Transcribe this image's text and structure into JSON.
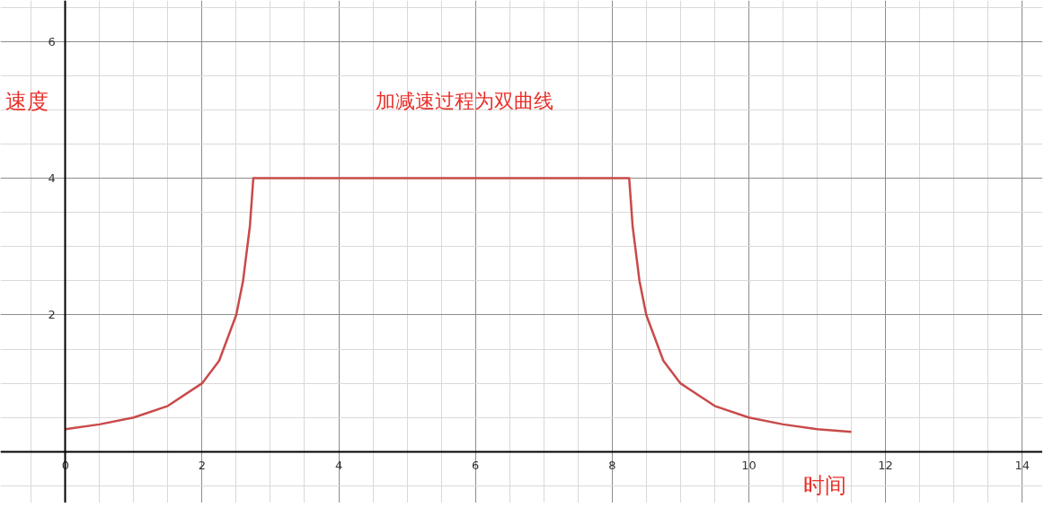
{
  "chart_data": {
    "type": "line",
    "xlabel": "时间",
    "ylabel": "速度",
    "annotations": [
      "加减速过程为双曲线"
    ],
    "x": [
      0,
      0.5,
      1,
      1.5,
      2,
      2.25,
      2.5,
      2.6,
      2.7,
      2.75,
      8.25,
      8.3,
      8.4,
      8.5,
      8.75,
      9,
      9.5,
      10,
      10.5,
      11,
      11.5
    ],
    "series": [
      {
        "color": "#c94a4a",
        "values": [
          0.33,
          0.4,
          0.5,
          0.67,
          1,
          1.33,
          2,
          2.5,
          3.3,
          4,
          4,
          3.3,
          2.5,
          2,
          1.33,
          1,
          0.67,
          0.5,
          0.4,
          0.33,
          0.29
        ]
      }
    ],
    "xlim": [
      -0.95,
      14.3
    ],
    "ylim": [
      -0.75,
      6.6
    ],
    "xticks": [
      0,
      2,
      4,
      6,
      8,
      10,
      12,
      14
    ],
    "yticks": [
      2,
      4,
      6
    ],
    "grid": true,
    "marker": "none",
    "line_style": "solid"
  }
}
